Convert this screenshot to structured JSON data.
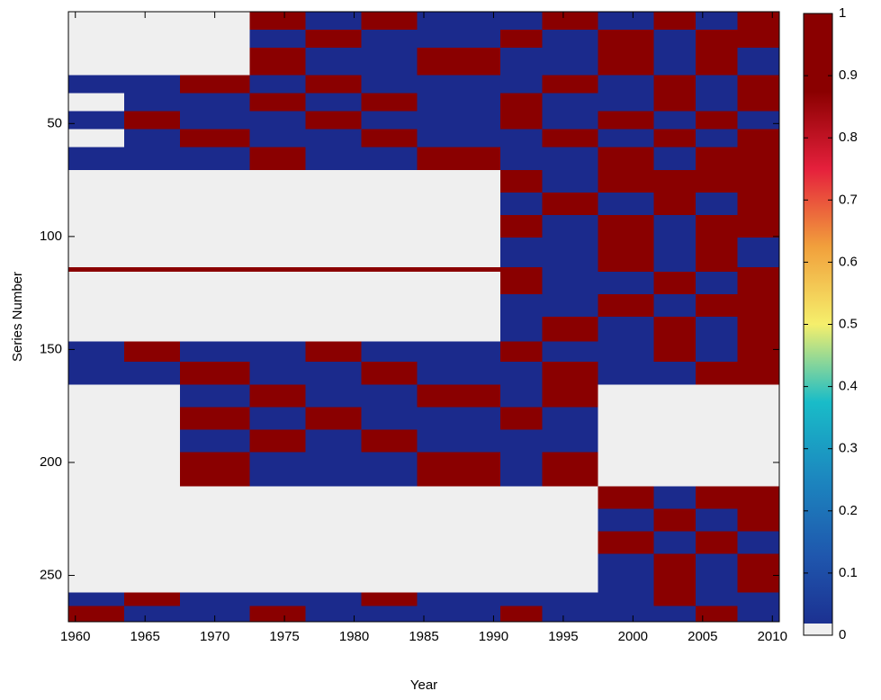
{
  "chart_data": {
    "type": "heatmap",
    "xlabel": "Year",
    "ylabel": "Series Number",
    "xbins": [
      1959.5,
      1963.5,
      1967.5,
      1972.5,
      1976.5,
      1980.5,
      1984.5,
      1990.5,
      1993.5,
      1997.5,
      2001.5,
      2004.5,
      2007.5,
      2010.5
    ],
    "ybins": [
      0.5,
      8.5,
      16.5,
      28.5,
      36.5,
      44.5,
      52.5,
      60.5,
      70.5,
      80.5,
      90.5,
      100.5,
      113.5,
      115.5,
      125.5,
      135.5,
      146.5,
      155.5,
      165.5,
      175.5,
      185.5,
      195.5,
      210.5,
      220.5,
      230.5,
      240.5,
      257.5,
      263.5,
      270.5
    ],
    "z": [
      [
        null,
        null,
        null,
        1,
        0,
        1,
        0,
        0,
        1,
        0,
        1,
        0,
        1
      ],
      [
        null,
        null,
        null,
        0,
        1,
        0,
        0,
        1,
        0,
        1,
        0,
        1,
        1
      ],
      [
        null,
        null,
        null,
        1,
        0,
        0,
        1,
        0,
        0,
        1,
        0,
        1,
        0
      ],
      [
        0,
        0,
        1,
        0,
        1,
        0,
        0,
        0,
        1,
        0,
        1,
        0,
        1
      ],
      [
        null,
        0,
        0,
        1,
        0,
        1,
        0,
        1,
        0,
        0,
        1,
        0,
        1
      ],
      [
        0,
        1,
        0,
        0,
        1,
        0,
        0,
        1,
        0,
        1,
        0,
        1,
        0
      ],
      [
        null,
        0,
        1,
        0,
        0,
        1,
        0,
        0,
        1,
        0,
        1,
        0,
        1
      ],
      [
        0,
        0,
        0,
        1,
        0,
        0,
        1,
        0,
        0,
        1,
        0,
        1,
        1
      ],
      [
        null,
        null,
        null,
        null,
        null,
        null,
        null,
        1,
        0,
        1,
        1,
        1,
        1
      ],
      [
        null,
        null,
        null,
        null,
        null,
        null,
        null,
        0,
        1,
        0,
        1,
        0,
        1
      ],
      [
        null,
        null,
        null,
        null,
        null,
        null,
        null,
        1,
        0,
        1,
        0,
        1,
        1
      ],
      [
        null,
        null,
        null,
        null,
        null,
        null,
        null,
        0,
        0,
        1,
        0,
        1,
        0
      ],
      [
        1,
        1,
        1,
        1,
        1,
        1,
        1,
        1,
        0,
        1,
        0,
        1,
        1
      ],
      [
        null,
        null,
        null,
        null,
        null,
        null,
        null,
        1,
        0,
        0,
        1,
        0,
        1
      ],
      [
        null,
        null,
        null,
        null,
        null,
        null,
        null,
        0,
        0,
        1,
        0,
        1,
        1
      ],
      [
        null,
        null,
        null,
        null,
        null,
        null,
        null,
        0,
        1,
        0,
        1,
        0,
        1
      ],
      [
        0,
        1,
        0,
        0,
        1,
        0,
        0,
        1,
        0,
        0,
        1,
        0,
        1
      ],
      [
        0,
        0,
        1,
        0,
        0,
        1,
        0,
        0,
        1,
        0,
        0,
        1,
        1
      ],
      [
        null,
        null,
        0,
        1,
        0,
        0,
        1,
        0,
        1,
        null,
        null,
        null,
        null
      ],
      [
        null,
        null,
        1,
        0,
        1,
        0,
        0,
        1,
        0,
        null,
        null,
        null,
        null
      ],
      [
        null,
        null,
        0,
        1,
        0,
        1,
        0,
        0,
        0,
        null,
        null,
        null,
        null
      ],
      [
        null,
        null,
        1,
        0,
        0,
        0,
        1,
        0,
        1,
        null,
        null,
        null,
        null
      ],
      [
        null,
        null,
        null,
        null,
        null,
        null,
        null,
        null,
        null,
        1,
        0,
        1,
        1
      ],
      [
        null,
        null,
        null,
        null,
        null,
        null,
        null,
        null,
        null,
        0,
        1,
        0,
        1
      ],
      [
        null,
        null,
        null,
        null,
        null,
        null,
        null,
        null,
        null,
        1,
        0,
        1,
        0
      ],
      [
        null,
        null,
        null,
        null,
        null,
        null,
        null,
        null,
        null,
        0,
        1,
        0,
        1
      ],
      [
        0,
        1,
        0,
        0,
        0,
        1,
        0,
        0,
        0,
        0,
        1,
        0,
        0
      ],
      [
        1,
        0,
        0,
        1,
        0,
        0,
        0,
        1,
        0,
        0,
        0,
        1,
        0
      ]
    ],
    "xlim": [
      1959.5,
      2010.5
    ],
    "xticks": [
      1960,
      1965,
      1970,
      1975,
      1980,
      1985,
      1990,
      1995,
      2000,
      2005,
      2010
    ],
    "ylim": [
      270.5,
      0.5
    ],
    "yticks": [
      50,
      100,
      150,
      200,
      250
    ],
    "clim": [
      0,
      1
    ],
    "cticks": [
      0,
      0.1,
      0.2,
      0.3,
      0.4,
      0.5,
      0.6,
      0.7,
      0.8,
      0.9,
      1
    ],
    "colormap": [
      "#1b2a8c",
      "#1f56ad",
      "#1c86bf",
      "#19bcc8",
      "#f5ef6c",
      "#f1a03c",
      "#e5203c",
      "#8a0000",
      "#8a0000"
    ],
    "missing_color": "#efefef"
  }
}
